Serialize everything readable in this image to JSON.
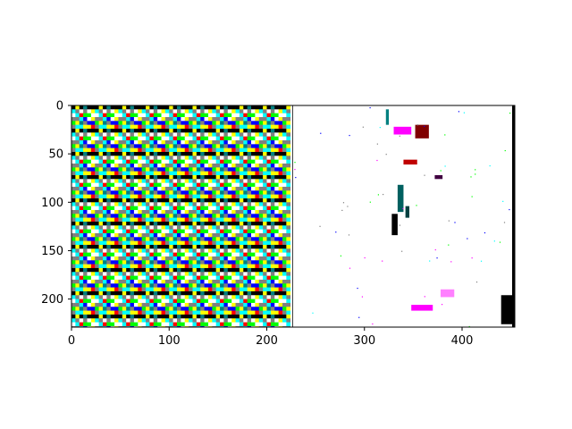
{
  "chart_data": {
    "type": "heatmap",
    "title": "",
    "xlabel": "",
    "ylabel": "",
    "description_of_content": "",
    "xlim": [
      0,
      454
    ],
    "ylim": [
      229,
      0
    ],
    "image_width": 454,
    "image_height": 229,
    "panel_split_x": 227,
    "x_ticks": [
      0,
      100,
      200,
      300,
      400
    ],
    "y_ticks": [
      0,
      50,
      100,
      150,
      200
    ],
    "x_tick_labels": [
      "0",
      "100",
      "200",
      "300",
      "400"
    ],
    "y_tick_labels": [
      "0",
      "50",
      "100",
      "150",
      "200"
    ],
    "grid": false,
    "legend": "none",
    "colors": {
      "background": "#ffffff",
      "frame": "#000000",
      "noise_palette": [
        "#ff00ff",
        "#00ffff",
        "#00ff00",
        "#ffff00",
        "#0000ff",
        "#ff0000",
        "#000000",
        "#ffffff",
        "#808080",
        "#008080"
      ]
    },
    "right_panel_features": [
      {
        "x": 322,
        "y": 4,
        "w": 3,
        "h": 16,
        "color": "#008080"
      },
      {
        "x": 330,
        "y": 22,
        "w": 18,
        "h": 8,
        "color": "#ff00ff"
      },
      {
        "x": 352,
        "y": 20,
        "w": 14,
        "h": 14,
        "color": "#800000"
      },
      {
        "x": 340,
        "y": 56,
        "w": 14,
        "h": 5,
        "color": "#c00000"
      },
      {
        "x": 372,
        "y": 72,
        "w": 8,
        "h": 4,
        "color": "#400040"
      },
      {
        "x": 334,
        "y": 82,
        "w": 6,
        "h": 28,
        "color": "#006060"
      },
      {
        "x": 328,
        "y": 112,
        "w": 6,
        "h": 22,
        "color": "#000000"
      },
      {
        "x": 342,
        "y": 104,
        "w": 4,
        "h": 12,
        "color": "#004040"
      },
      {
        "x": 348,
        "y": 206,
        "w": 22,
        "h": 6,
        "color": "#ff00ff"
      },
      {
        "x": 378,
        "y": 190,
        "w": 14,
        "h": 8,
        "color": "#ff80ff"
      },
      {
        "x": 440,
        "y": 196,
        "w": 12,
        "h": 30,
        "color": "#000000"
      }
    ]
  }
}
